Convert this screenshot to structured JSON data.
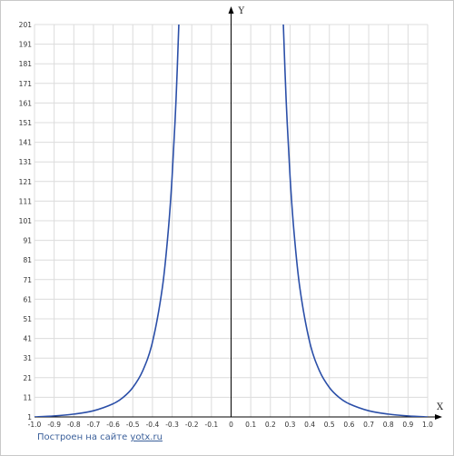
{
  "chart_data": {
    "type": "line",
    "title": "",
    "xlabel": "X",
    "ylabel": "Y",
    "xlim": [
      -1.0,
      1.0
    ],
    "ylim": [
      1,
      201
    ],
    "x_ticks": [
      "-1.0",
      "-0.9",
      "-0.8",
      "-0.7",
      "-0.6",
      "-0.5",
      "-0.4",
      "-0.3",
      "-0.2",
      "-0.1",
      "0",
      "0.1",
      "0.2",
      "0.3",
      "0.4",
      "0.5",
      "0.6",
      "0.7",
      "0.8",
      "0.9",
      "1.0"
    ],
    "y_ticks": [
      "1",
      "11",
      "21",
      "31",
      "41",
      "51",
      "61",
      "71",
      "81",
      "91",
      "101",
      "111",
      "121",
      "131",
      "141",
      "151",
      "161",
      "171",
      "181",
      "191",
      "201"
    ],
    "grid": true,
    "series": [
      {
        "color": "#2b4fa8",
        "points": [
          [
            -1.0,
            1.0
          ],
          [
            -0.9,
            1.52
          ],
          [
            -0.8,
            2.44
          ],
          [
            -0.7,
            4.16
          ],
          [
            -0.6,
            7.72
          ],
          [
            -0.55,
            10.9
          ],
          [
            -0.5,
            16.0
          ],
          [
            -0.45,
            24.4
          ],
          [
            -0.4,
            39.1
          ],
          [
            -0.35,
            66.6
          ],
          [
            -0.32,
            95.4
          ],
          [
            -0.3,
            123.5
          ],
          [
            -0.28,
            162.7
          ],
          [
            -0.265,
            203.5
          ],
          [
            0.265,
            203.5
          ],
          [
            0.28,
            162.7
          ],
          [
            0.3,
            123.5
          ],
          [
            0.32,
            95.4
          ],
          [
            0.35,
            66.6
          ],
          [
            0.4,
            39.1
          ],
          [
            0.45,
            24.4
          ],
          [
            0.5,
            16.0
          ],
          [
            0.55,
            10.9
          ],
          [
            0.6,
            7.72
          ],
          [
            0.7,
            4.16
          ],
          [
            0.8,
            2.44
          ],
          [
            0.9,
            1.52
          ],
          [
            1.0,
            1.0
          ]
        ]
      }
    ]
  },
  "credit": {
    "prefix": "Построен на сайте ",
    "link": "yotx.ru"
  },
  "colors": {
    "grid": "#dcdcdc",
    "axis": "#000000",
    "curve": "#2b4fa8",
    "credit": "#3a5f9a"
  }
}
